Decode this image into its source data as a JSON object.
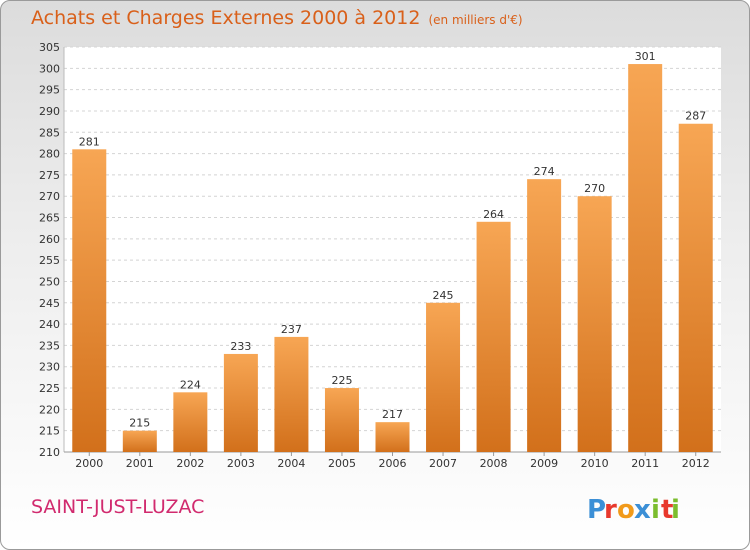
{
  "title": "Achats et Charges Externes 2000 à 2012",
  "subtitle": "(en milliers d'€)",
  "commune": "SAINT-JUST-LUZAC",
  "logo": {
    "text": "Proxiti",
    "colors": [
      "#3b8fd6",
      "#e8382c",
      "#f19a1a",
      "#3b8fd6",
      "#7bbd2e",
      "#e8382c",
      "#7bbd2e"
    ]
  },
  "colors": {
    "bar_light": "#f7a654",
    "bar_dark": "#d2701b",
    "title": "#d9601a",
    "commune": "#d12a6e"
  },
  "chart_data": {
    "type": "bar",
    "title": "Achats et Charges Externes 2000 à 2012",
    "subtitle": "(en milliers d'€)",
    "categories": [
      "2000",
      "2001",
      "2002",
      "2003",
      "2004",
      "2005",
      "2006",
      "2007",
      "2008",
      "2009",
      "2010",
      "2011",
      "2012"
    ],
    "values": [
      281,
      215,
      224,
      233,
      237,
      225,
      217,
      245,
      264,
      274,
      270,
      301,
      287
    ],
    "ylim": [
      210,
      305
    ],
    "yticks": [
      210,
      215,
      220,
      225,
      230,
      235,
      240,
      245,
      250,
      255,
      260,
      265,
      270,
      275,
      280,
      285,
      290,
      295,
      300,
      305
    ],
    "grid": true,
    "xlabel": "",
    "ylabel": ""
  }
}
